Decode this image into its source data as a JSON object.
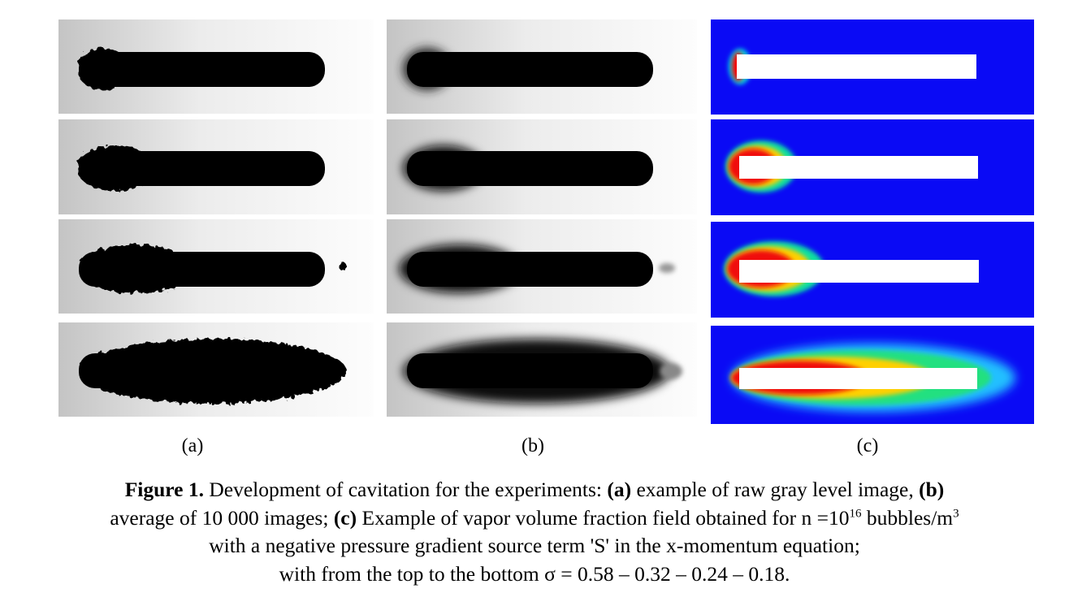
{
  "panel_labels": [
    "(a)",
    "(b)",
    "(c)"
  ],
  "caption": {
    "segments": [
      "Figure 1.",
      " Development of cavitation for the experiments: ",
      "(a)",
      " example of raw gray level image, ",
      "(b)",
      "average of 10 000 images; ",
      "(c)",
      " Example of vapor volume fraction field obtained for n =10",
      "16",
      " bubbles/m",
      "3",
      "with a negative pressure gradient source term 'S' in the x-momentum equation;",
      "with from the top to the bottom σ = 0.58 – 0.32 – 0.24 – 0.18."
    ]
  }
}
